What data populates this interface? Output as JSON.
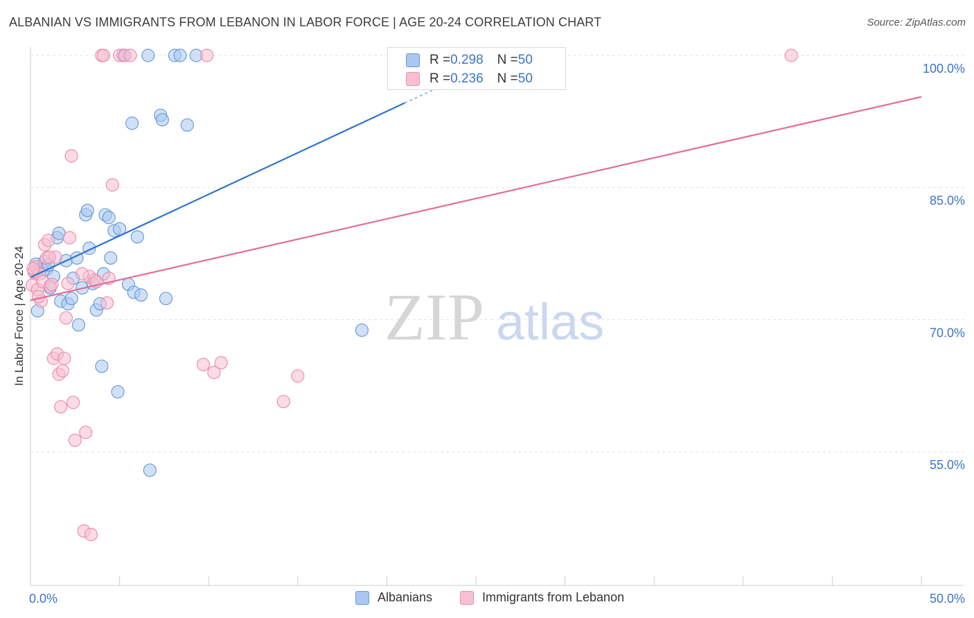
{
  "title": "ALBANIAN VS IMMIGRANTS FROM LEBANON IN LABOR FORCE | AGE 20-24 CORRELATION CHART",
  "source": "Source: ZipAtlas.com",
  "watermark": {
    "zip": "ZIP",
    "atlas": "atlas"
  },
  "legend": {
    "series1": {
      "r_label": "R = ",
      "r_value": "0.298",
      "n_label": "N = ",
      "n_value": "50"
    },
    "series2": {
      "r_label": "R = ",
      "r_value": "0.236",
      "n_label": "N = ",
      "n_value": "50"
    }
  },
  "colors": {
    "blue_fill": "#a9c8f0",
    "blue_stroke": "#6b9bd8",
    "blue_line": "#2f73cf",
    "pink_fill": "#f7bfd1",
    "pink_stroke": "#eb8fac",
    "pink_line": "#e26d96",
    "grid": "#e3e3e3",
    "tick_label": "#3b74c9"
  },
  "chart_data": {
    "type": "scatter",
    "title": "ALBANIAN VS IMMIGRANTS FROM LEBANON IN LABOR FORCE | AGE 20-24 CORRELATION CHART",
    "xlabel": "",
    "ylabel": "In Labor Force | Age 20-24",
    "xlim": [
      0,
      50
    ],
    "ylim": [
      40,
      102
    ],
    "x_tick_labels": [
      "0.0%",
      "50.0%"
    ],
    "y_ticks": [
      55,
      70,
      85,
      100
    ],
    "y_tick_labels": [
      "55.0%",
      "70.0%",
      "85.0%",
      "100.0%"
    ],
    "series": [
      {
        "name": "Albanians",
        "points": [
          [
            0.2,
            75.5
          ],
          [
            0.3,
            76.3
          ],
          [
            0.4,
            71.0
          ],
          [
            0.6,
            75.8
          ],
          [
            0.8,
            76.6
          ],
          [
            0.9,
            75.7
          ],
          [
            1.0,
            76.2
          ],
          [
            1.1,
            73.6
          ],
          [
            1.3,
            74.9
          ],
          [
            1.5,
            79.3
          ],
          [
            1.6,
            79.8
          ],
          [
            1.7,
            72.1
          ],
          [
            2.0,
            76.7
          ],
          [
            2.1,
            71.8
          ],
          [
            2.3,
            72.4
          ],
          [
            2.4,
            74.7
          ],
          [
            2.6,
            77.0
          ],
          [
            2.7,
            69.4
          ],
          [
            2.9,
            73.6
          ],
          [
            3.1,
            81.9
          ],
          [
            3.2,
            82.4
          ],
          [
            3.3,
            78.1
          ],
          [
            3.5,
            74.1
          ],
          [
            3.7,
            71.1
          ],
          [
            3.9,
            71.8
          ],
          [
            4.0,
            64.7
          ],
          [
            4.1,
            75.2
          ],
          [
            4.2,
            81.9
          ],
          [
            4.4,
            81.6
          ],
          [
            4.5,
            77.0
          ],
          [
            4.7,
            80.1
          ],
          [
            4.9,
            61.8
          ],
          [
            5.0,
            80.3
          ],
          [
            5.2,
            100.0
          ],
          [
            5.3,
            100.0
          ],
          [
            5.5,
            74.0
          ],
          [
            5.7,
            92.3
          ],
          [
            5.8,
            73.1
          ],
          [
            6.0,
            79.4
          ],
          [
            6.2,
            72.8
          ],
          [
            6.6,
            100.0
          ],
          [
            6.7,
            52.9
          ],
          [
            7.3,
            93.2
          ],
          [
            7.4,
            92.7
          ],
          [
            7.6,
            72.4
          ],
          [
            8.1,
            100.0
          ],
          [
            8.4,
            100.0
          ],
          [
            8.8,
            92.1
          ],
          [
            9.3,
            100.0
          ],
          [
            18.6,
            68.8
          ]
        ],
        "trend": {
          "x": [
            0,
            21.0
          ],
          "y": [
            74.8,
            94.6
          ],
          "dashed_to": [
            24.0,
            97.4
          ]
        }
      },
      {
        "name": "Immigrants from Lebanon",
        "points": [
          [
            0.1,
            73.9
          ],
          [
            0.2,
            75.4
          ],
          [
            0.3,
            76.0
          ],
          [
            0.4,
            73.4
          ],
          [
            0.5,
            75.2
          ],
          [
            0.6,
            72.1
          ],
          [
            0.7,
            74.3
          ],
          [
            0.8,
            78.5
          ],
          [
            0.9,
            77.0
          ],
          [
            1.0,
            79.0
          ],
          [
            1.1,
            73.8
          ],
          [
            1.2,
            74.0
          ],
          [
            1.3,
            65.6
          ],
          [
            1.4,
            77.1
          ],
          [
            1.5,
            66.1
          ],
          [
            1.6,
            63.8
          ],
          [
            1.7,
            60.1
          ],
          [
            1.8,
            64.2
          ],
          [
            1.9,
            65.6
          ],
          [
            2.0,
            70.2
          ],
          [
            2.1,
            74.1
          ],
          [
            2.2,
            79.3
          ],
          [
            2.3,
            88.6
          ],
          [
            2.4,
            60.6
          ],
          [
            2.5,
            56.3
          ],
          [
            3.0,
            46.0
          ],
          [
            3.1,
            57.2
          ],
          [
            3.3,
            74.9
          ],
          [
            3.4,
            45.6
          ],
          [
            3.6,
            74.5
          ],
          [
            3.7,
            74.3
          ],
          [
            4.0,
            100.0
          ],
          [
            4.1,
            100.0
          ],
          [
            4.3,
            71.9
          ],
          [
            4.4,
            74.7
          ],
          [
            4.6,
            85.3
          ],
          [
            5.0,
            100.0
          ],
          [
            5.3,
            100.0
          ],
          [
            5.6,
            100.0
          ],
          [
            9.7,
            64.9
          ],
          [
            9.9,
            100.0
          ],
          [
            10.3,
            64.0
          ],
          [
            10.7,
            65.1
          ],
          [
            14.2,
            60.7
          ],
          [
            15.0,
            63.6
          ],
          [
            42.7,
            100.0
          ],
          [
            0.45,
            72.6
          ],
          [
            1.05,
            77.1
          ],
          [
            0.15,
            75.8
          ],
          [
            2.9,
            75.2
          ]
        ],
        "trend": {
          "x": [
            0,
            50
          ],
          "y": [
            72.2,
            95.3
          ]
        }
      }
    ]
  }
}
